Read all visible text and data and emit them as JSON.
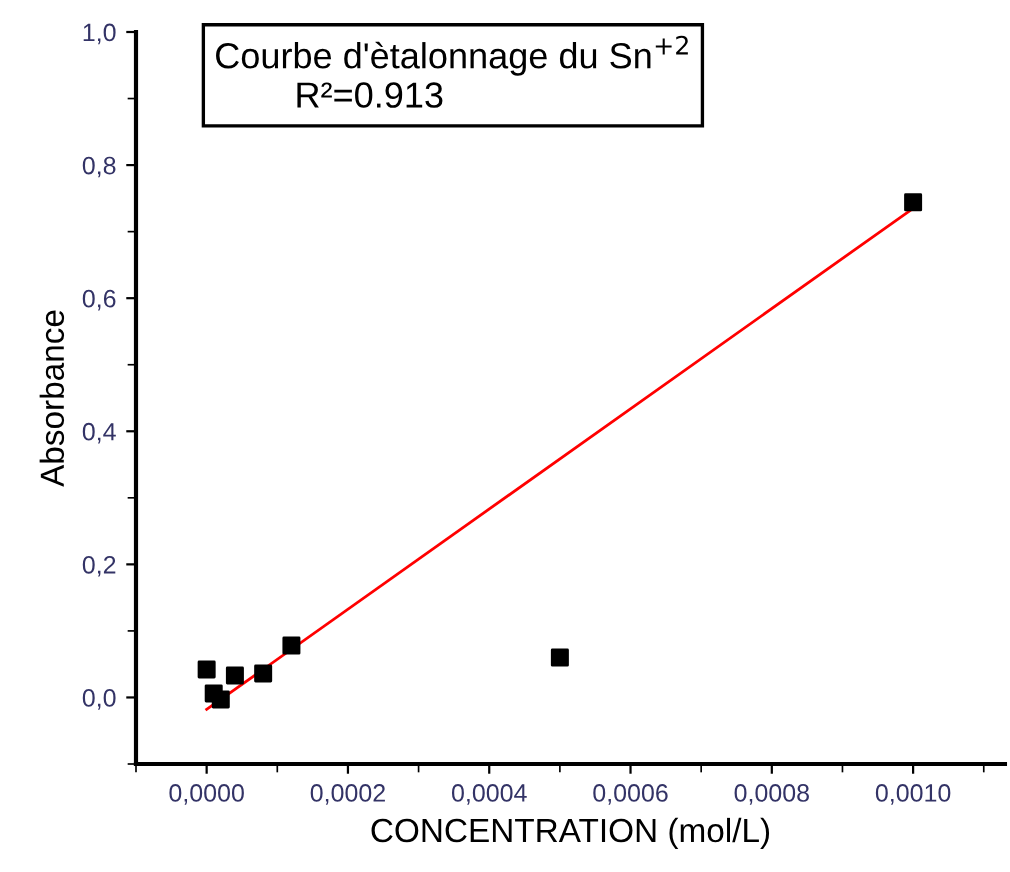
{
  "chart_data": {
    "type": "scatter",
    "title": "Courbe d'ètalonnage du Sn$^{+2}$",
    "annotations": [
      "R²=0.913"
    ],
    "xlabel": "CONCENTRATION (mol/L)",
    "ylabel": "Absorbance",
    "marker": "square",
    "grid": false,
    "legend": false,
    "series": [
      {
        "color": "#000000",
        "x": [
          0.0,
          1e-05,
          2e-05,
          4e-05,
          8e-05,
          0.00012,
          0.0005,
          0.001
        ],
        "values": [
          0.042,
          0.006,
          -0.003,
          0.033,
          0.036,
          0.078,
          0.06,
          0.744
        ]
      },
      {
        "type": "line",
        "color": "#ff0000",
        "marker": "none",
        "x": [
          0.0,
          0.001
        ],
        "values": [
          -0.018,
          0.735
        ]
      }
    ],
    "xlim": [
      -0.0001,
      0.00113
    ],
    "ylim": [
      -0.1,
      1.0
    ],
    "xticks": [
      {
        "value": 0.0,
        "label": "0,0000"
      },
      {
        "value": 0.0002,
        "label": "0,0002"
      },
      {
        "value": 0.0004,
        "label": "0,0004"
      },
      {
        "value": 0.0006,
        "label": "0,0006"
      },
      {
        "value": 0.0008,
        "label": "0,0008"
      },
      {
        "value": 0.001,
        "label": "0,0010"
      }
    ],
    "yticks": [
      {
        "value": 0.0,
        "label": "0,0"
      },
      {
        "value": 0.2,
        "label": "0,2"
      },
      {
        "value": 0.4,
        "label": "0,4"
      },
      {
        "value": 0.6,
        "label": "0,6"
      },
      {
        "value": 0.8,
        "label": "0,8"
      },
      {
        "value": 1.0,
        "label": "1,0"
      }
    ]
  }
}
